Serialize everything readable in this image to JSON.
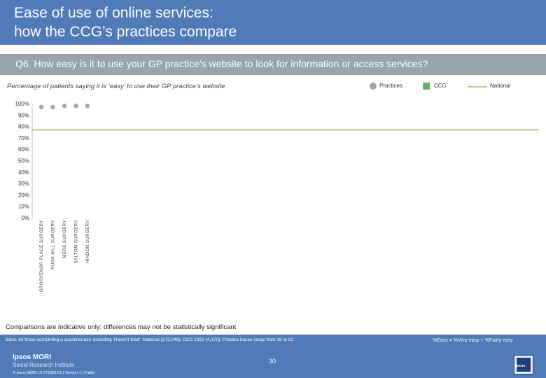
{
  "header": {
    "title": "Ease of use of online services:\nhow the CCG’s practices compare"
  },
  "question": "Q6. How easy is it to use your GP practice’s website to look for information or access services?",
  "subtitle": "Percentage of patients saying it is ‘easy’ to use their GP practice’s website",
  "legend": {
    "practices": "Practices",
    "ccg": "CCG",
    "national": "National"
  },
  "colors": {
    "header": "#4f7bb9",
    "question_band": "#9aa3ac",
    "practice_dot": "#a6a6a6",
    "ccg": "#5cb567",
    "national": "#c8c089"
  },
  "chart_data": {
    "type": "scatter",
    "ylim": [
      0,
      100
    ],
    "yticks": [
      "0%",
      "10%",
      "20%",
      "30%",
      "40%",
      "50%",
      "60%",
      "70%",
      "80%",
      "90%",
      "100%"
    ],
    "categories": [
      "GROSVENOR PLACE SURGERY",
      "RUSH HILL SURGERY",
      "MERE SURGERY",
      "SALTOM SURGERY",
      "HINDON SURGERY"
    ],
    "values": [
      97,
      97,
      98,
      98,
      98
    ],
    "national": 77
  },
  "footer": {
    "note": "Comparisons are indicative only: differences may not be statistically significant",
    "base": "Base: All those completing a questionnaire excluding 'Haven't tried': National (273,048); CCG 2020 (4,370); Practice bases range from 16 to 81",
    "easy_def": "%Easy = %Very easy + %Fairly easy",
    "brand_line1": "Ipsos MORI",
    "brand_line2": "Social Research Institute",
    "page_number": "30",
    "copyright": "© Ipsos MORI     19-071809-01 | Version 1 | Public",
    "logo": "Ipsos"
  }
}
